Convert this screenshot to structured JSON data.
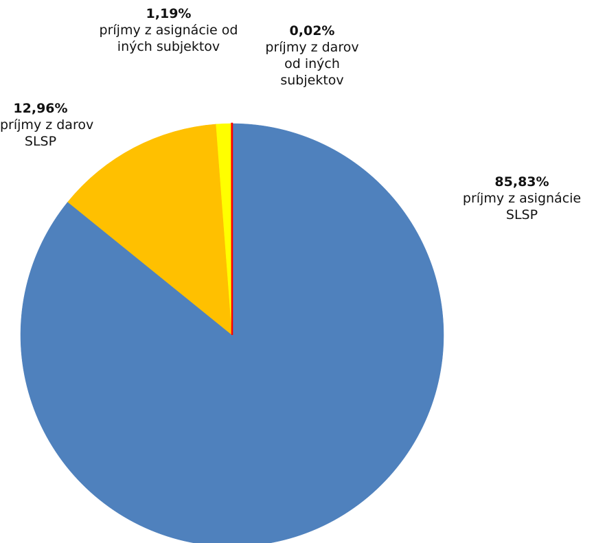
{
  "chart_data": {
    "type": "pie",
    "title": "",
    "start": "top",
    "direction": "clockwise",
    "slices": [
      {
        "pct_label": "85,83%",
        "value": 85.83,
        "label_lines": [
          "príjmy z asignácie",
          "SLSP"
        ],
        "color": "#4F81BD"
      },
      {
        "pct_label": "12,96%",
        "value": 12.96,
        "label_lines": [
          "príjmy z darov",
          "SLSP"
        ],
        "color": "#FFC000"
      },
      {
        "pct_label": "1,19%",
        "value": 1.19,
        "label_lines": [
          "príjmy z asignácie od",
          "iných subjektov"
        ],
        "color": "#FFFF00"
      },
      {
        "pct_label": "0,02%",
        "value": 0.02,
        "label_lines": [
          "príjmy z darov",
          "od iných",
          "subjektov"
        ],
        "color": "#FF0000"
      }
    ]
  }
}
